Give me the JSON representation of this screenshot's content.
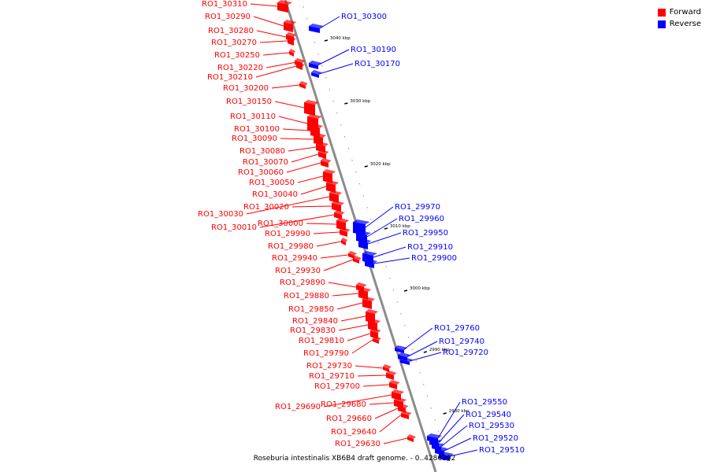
{
  "legend": {
    "forward_label": "Forward",
    "reverse_label": "Reverse",
    "forward_color": "#ff0000",
    "reverse_color": "#0000ff"
  },
  "caption": "Roseburia intestinalis XB6B4 draft genome. - 0..4286292",
  "ticks": [
    "3040 kbp",
    "3030 kbp",
    "3020 kbp",
    "3010 kbp",
    "3000 kbp",
    "2990 kbp",
    "2980 kbp"
  ],
  "forward_genes": [
    "RO1_30310",
    "RO1_30290",
    "RO1_30280",
    "RO1_30270",
    "RO1_30250",
    "RO1_30220",
    "RO1_30210",
    "RO1_30200",
    "RO1_30150",
    "RO1_30110",
    "RO1_30100",
    "RO1_30090",
    "RO1_30080",
    "RO1_30070",
    "RO1_30060",
    "RO1_30050",
    "RO1_30040",
    "RO1_30030",
    "RO1_30020",
    "RO1_30010",
    "RO1_30000",
    "RO1_29990",
    "RO1_29980",
    "RO1_29940",
    "RO1_29930",
    "RO1_29890",
    "RO1_29880",
    "RO1_29850",
    "RO1_29840",
    "RO1_29830",
    "RO1_29810",
    "RO1_29790",
    "RO1_29730",
    "RO1_29710",
    "RO1_29700",
    "RO1_29690",
    "RO1_29680",
    "RO1_29660",
    "RO1_29640",
    "RO1_29630"
  ],
  "reverse_genes": [
    "RO1_30300",
    "RO1_30190",
    "RO1_30170",
    "RO1_29970",
    "RO1_29960",
    "RO1_29950",
    "RO1_29910",
    "RO1_29900",
    "RO1_29760",
    "RO1_29740",
    "RO1_29720",
    "RO1_29550",
    "RO1_29540",
    "RO1_29530",
    "RO1_29520",
    "RO1_29510"
  ]
}
